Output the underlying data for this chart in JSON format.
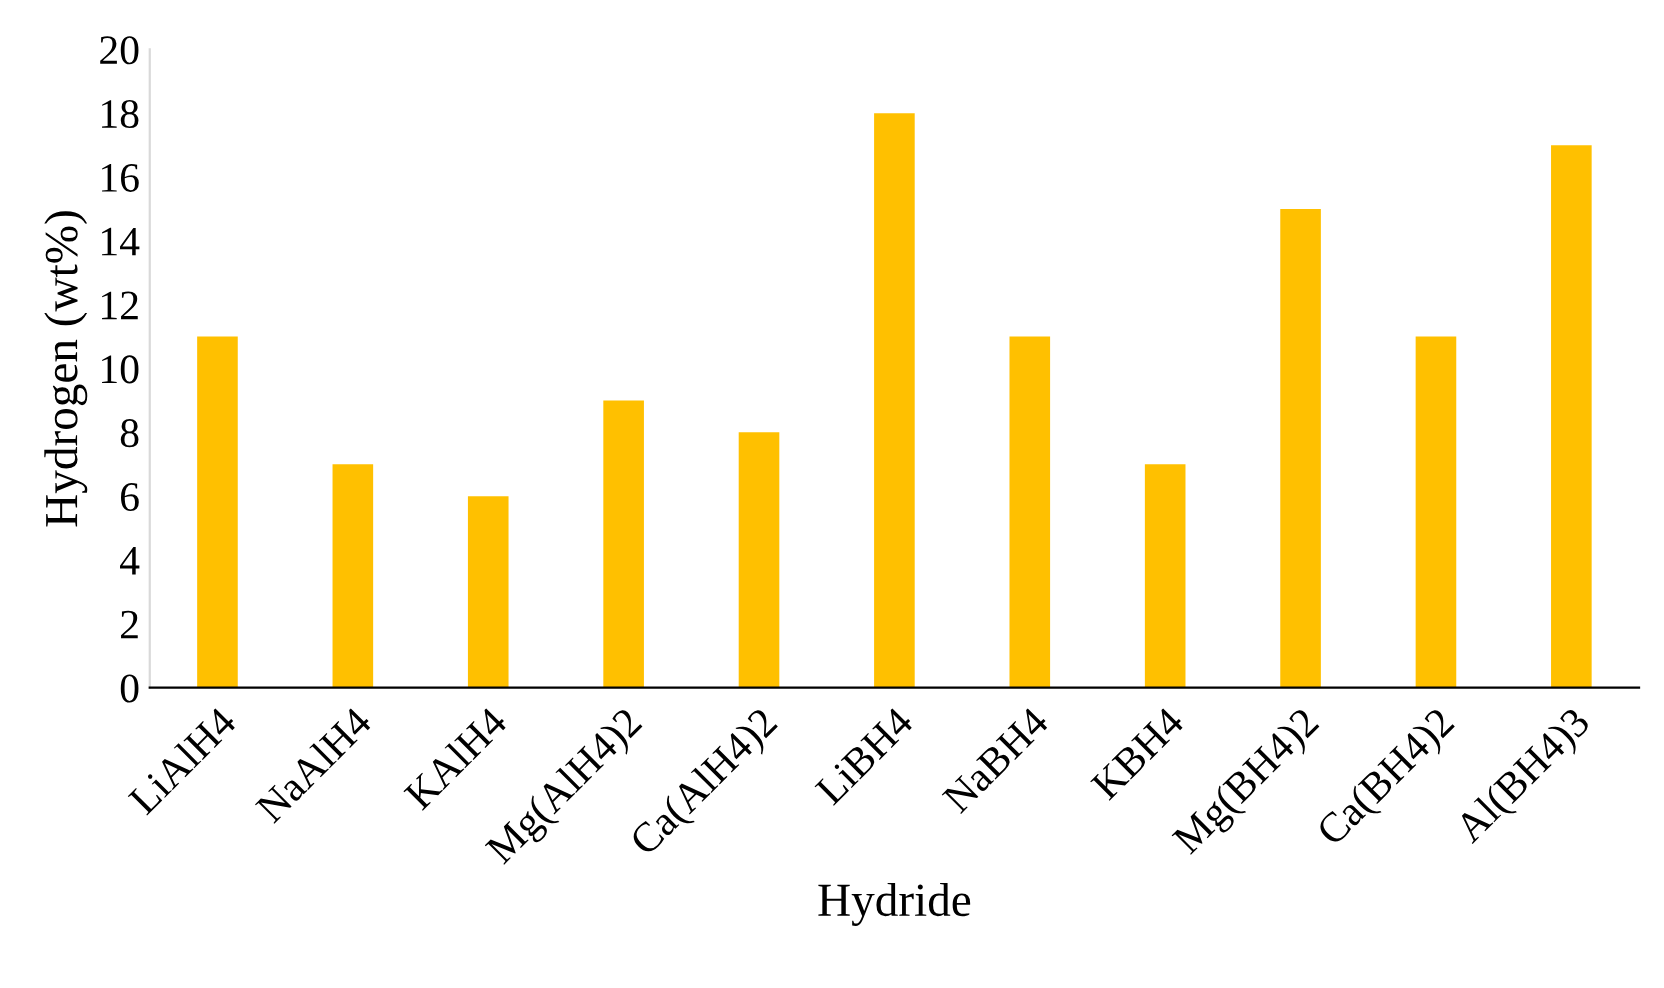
{
  "chart_data": {
    "type": "bar",
    "xlabel": "Hydride",
    "ylabel": "Hydrogen (wt%)",
    "categories": [
      "LiAlH4",
      "NaAlH4",
      "KAlH4",
      "Mg(AlH4)2",
      "Ca(AlH4)2",
      "LiBH4",
      "NaBH4",
      "KBH4",
      "Mg(BH4)2",
      "Ca(BH4)2",
      "Al(BH4)3"
    ],
    "values": [
      11,
      7,
      6,
      9,
      8,
      18,
      11,
      7,
      15,
      11,
      17
    ],
    "color": "#ffc000",
    "ylim": [
      0,
      20
    ],
    "yticks": [
      0,
      2,
      4,
      6,
      8,
      10,
      12,
      14,
      16,
      18,
      20
    ],
    "grid": false,
    "legend": false
  }
}
